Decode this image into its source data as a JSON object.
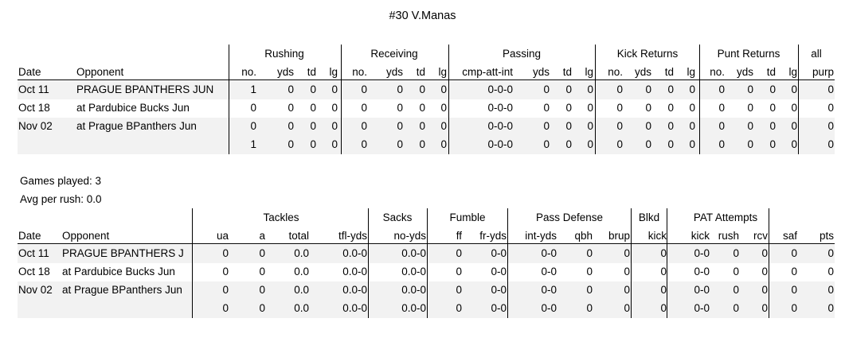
{
  "title": "#30 V.Manas",
  "offense": {
    "groups": [
      {
        "key": "rushing",
        "label": "Rushing"
      },
      {
        "key": "receiving",
        "label": "Receiving"
      },
      {
        "key": "passing",
        "label": "Passing"
      },
      {
        "key": "kick",
        "label": "Kick Returns"
      },
      {
        "key": "punt",
        "label": "Punt Returns"
      },
      {
        "key": "all",
        "label": "all"
      }
    ],
    "columns": [
      "Date",
      "Opponent",
      "no.",
      "yds",
      "td",
      "lg",
      "no.",
      "yds",
      "td",
      "lg",
      "cmp-att-int",
      "yds",
      "td",
      "lg",
      "no.",
      "yds",
      "td",
      "lg",
      "no.",
      "yds",
      "td",
      "lg",
      "purp"
    ],
    "rows": [
      [
        "Oct 11",
        "PRAGUE BPANTHERS JUN",
        "1",
        "0",
        "0",
        "0",
        "0",
        "0",
        "0",
        "0",
        "0-0-0",
        "0",
        "0",
        "0",
        "0",
        "0",
        "0",
        "0",
        "0",
        "0",
        "0",
        "0",
        "0"
      ],
      [
        "Oct 18",
        "at Pardubice Bucks Jun",
        "0",
        "0",
        "0",
        "0",
        "0",
        "0",
        "0",
        "0",
        "0-0-0",
        "0",
        "0",
        "0",
        "0",
        "0",
        "0",
        "0",
        "0",
        "0",
        "0",
        "0",
        "0"
      ],
      [
        "Nov 02",
        "at Prague BPanthers Jun",
        "0",
        "0",
        "0",
        "0",
        "0",
        "0",
        "0",
        "0",
        "0-0-0",
        "0",
        "0",
        "0",
        "0",
        "0",
        "0",
        "0",
        "0",
        "0",
        "0",
        "0",
        "0"
      ]
    ],
    "totals": [
      "",
      "",
      "1",
      "0",
      "0",
      "0",
      "0",
      "0",
      "0",
      "0",
      "0-0-0",
      "0",
      "0",
      "0",
      "0",
      "0",
      "0",
      "0",
      "0",
      "0",
      "0",
      "0",
      "0"
    ]
  },
  "notes": {
    "games_played": "Games played: 3",
    "avg_per_rush": "Avg per rush: 0.0"
  },
  "defense": {
    "groups": [
      {
        "key": "tackles",
        "label": "Tackles"
      },
      {
        "key": "sacks",
        "label": "Sacks"
      },
      {
        "key": "fumble",
        "label": "Fumble"
      },
      {
        "key": "passdef",
        "label": "Pass Defense"
      },
      {
        "key": "blkd",
        "label": "Blkd"
      },
      {
        "key": "pat",
        "label": "PAT Attempts"
      }
    ],
    "columns": [
      "Date",
      "Opponent",
      "ua",
      "a",
      "total",
      "tfl-yds",
      "no-yds",
      "ff",
      "fr-yds",
      "int-yds",
      "qbh",
      "brup",
      "kick",
      "kick",
      "rush",
      "rcv",
      "saf",
      "pts"
    ],
    "rows": [
      [
        "Oct 11",
        "PRAGUE BPANTHERS J",
        "0",
        "0",
        "0.0",
        "0.0-0",
        "0.0-0",
        "0",
        "0-0",
        "0-0",
        "0",
        "0",
        "0",
        "0-0",
        "0",
        "0",
        "0",
        "0"
      ],
      [
        "Oct 18",
        "at Pardubice Bucks Jun",
        "0",
        "0",
        "0.0",
        "0.0-0",
        "0.0-0",
        "0",
        "0-0",
        "0-0",
        "0",
        "0",
        "0",
        "0-0",
        "0",
        "0",
        "0",
        "0"
      ],
      [
        "Nov 02",
        "at Prague BPanthers Jun",
        "0",
        "0",
        "0.0",
        "0.0-0",
        "0.0-0",
        "0",
        "0-0",
        "0-0",
        "0",
        "0",
        "0",
        "0-0",
        "0",
        "0",
        "0",
        "0"
      ]
    ],
    "totals": [
      "",
      "",
      "0",
      "0",
      "0.0",
      "0.0-0",
      "0.0-0",
      "0",
      "0-0",
      "0-0",
      "0",
      "0",
      "0",
      "0-0",
      "0",
      "0",
      "0",
      "0"
    ]
  }
}
